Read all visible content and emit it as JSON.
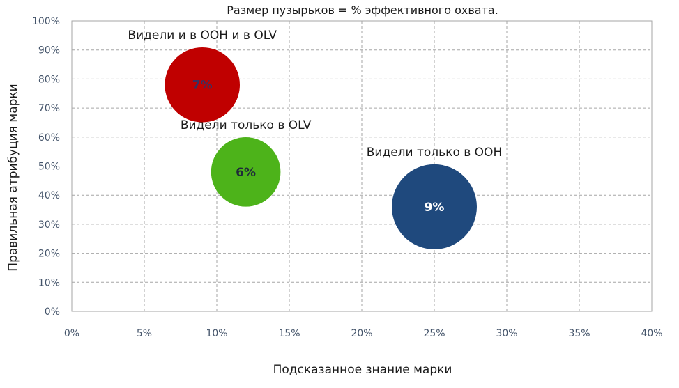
{
  "chart_data": {
    "type": "bubble",
    "title": "Размер пузырьков = % эффективного охвата.",
    "xlabel": "Подсказанное знание марки",
    "ylabel": "Правильная атрибуция марки",
    "xlim": [
      0,
      40
    ],
    "ylim": [
      0,
      100
    ],
    "x_ticks": [
      "0%",
      "5%",
      "10%",
      "15%",
      "20%",
      "25%",
      "30%",
      "35%",
      "40%"
    ],
    "y_ticks": [
      "0%",
      "10%",
      "20%",
      "30%",
      "40%",
      "50%",
      "60%",
      "70%",
      "80%",
      "90%",
      "100%"
    ],
    "grid": true,
    "series": [
      {
        "name": "Видели и в OOH и в OLV",
        "x": 9,
        "y": 78,
        "size": 7,
        "value_label": "7%",
        "color": "#c00000",
        "value_color": "#3b2f5e"
      },
      {
        "name": "Видели только в OLV",
        "x": 12,
        "y": 48,
        "size": 6,
        "value_label": "6%",
        "color": "#4db31a",
        "value_color": "#1f2a3a"
      },
      {
        "name": "Видели только в OOH",
        "x": 25,
        "y": 36,
        "size": 9,
        "value_label": "9%",
        "color": "#1f497d",
        "value_color": "#ffffff"
      }
    ]
  }
}
